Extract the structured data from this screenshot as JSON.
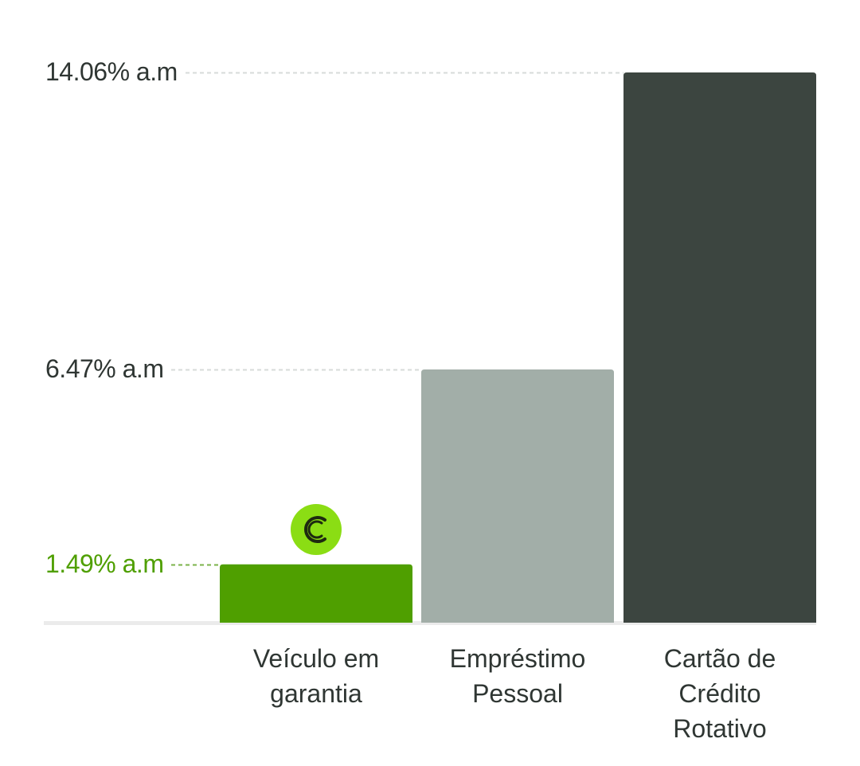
{
  "chart_data": {
    "type": "bar",
    "title": "",
    "xlabel": "",
    "ylabel": "",
    "ylim": [
      0,
      14.06
    ],
    "grid": false,
    "legend": "none",
    "categories": [
      {
        "lines": [
          "Veículo em",
          "garantia"
        ]
      },
      {
        "lines": [
          "Empréstimo",
          "Pessoal"
        ]
      },
      {
        "lines": [
          "Cartão de",
          "Crédito",
          "Rotativo"
        ]
      }
    ],
    "values": [
      1.49,
      6.47,
      14.06
    ],
    "value_labels": [
      "1.49% a.m",
      "6.47% a.m",
      "14.06% a.m"
    ],
    "bar_colors": [
      "#4f9f00",
      "#a2aea8",
      "#3c4540"
    ],
    "label_colors": [
      "#4f9f00",
      "#2f3633",
      "#2f3633"
    ],
    "leader_colors": [
      "#7bb34a",
      "#d7dbd9",
      "#d7dbd9"
    ],
    "highlight_index": 0,
    "highlight_badge": {
      "icon": "brand-c-logo-icon",
      "fill_color": "#8bdd14",
      "glyph_color": "#1e2a10"
    },
    "baseline_color": "#ebebeb"
  }
}
